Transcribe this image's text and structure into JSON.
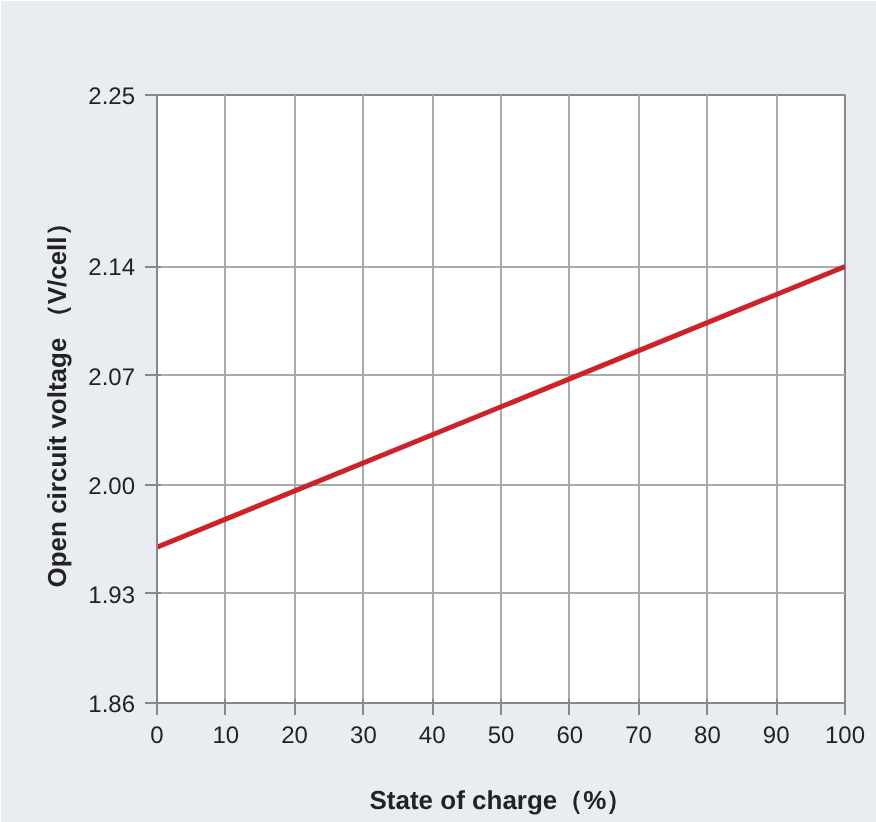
{
  "chart_data": {
    "type": "line",
    "xlabel": "State of charge（%）",
    "ylabel": "Open circuit voltage （V/cell）",
    "x": [
      0,
      100
    ],
    "series": [
      {
        "color": "#cc2229",
        "values": [
          1.96,
          2.14
        ]
      }
    ],
    "xlim": [
      0,
      100
    ],
    "xticks": [
      0,
      10,
      20,
      30,
      40,
      50,
      60,
      70,
      80,
      90,
      100
    ],
    "ylim": [
      1.86,
      2.25
    ],
    "yticks": [
      1.86,
      1.93,
      {
        "value": 2.0,
        "label": "2.00"
      },
      2.07,
      2.14,
      2.25
    ],
    "grid": true,
    "marker": "none",
    "line_style": "solid"
  }
}
